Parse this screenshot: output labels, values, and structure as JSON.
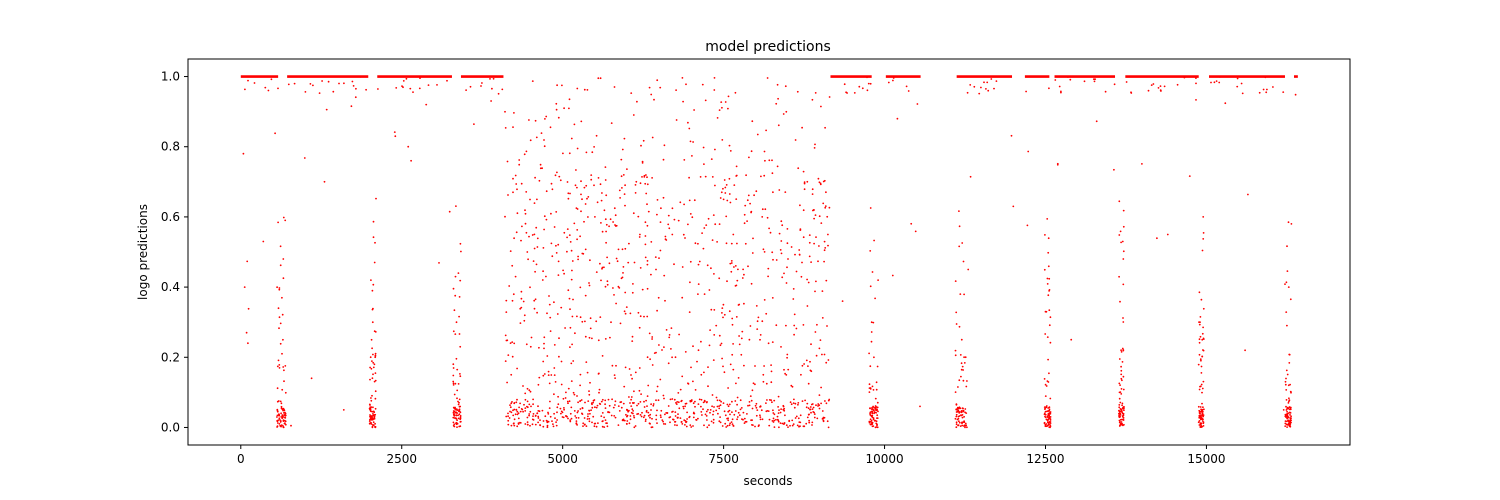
{
  "chart_data": {
    "type": "scatter",
    "title": "model predictions",
    "xlabel": "seconds",
    "ylabel": "logo predictions",
    "xlim": [
      -820,
      17230
    ],
    "ylim": [
      -0.05,
      1.05
    ],
    "xticks": [
      0,
      2500,
      5000,
      7500,
      10000,
      12500,
      15000
    ],
    "xtick_labels": [
      "0",
      "2500",
      "5000",
      "7500",
      "10000",
      "12500",
      "15000"
    ],
    "yticks": [
      0.0,
      0.2,
      0.4,
      0.6,
      0.8,
      1.0
    ],
    "ytick_labels": [
      "0.0",
      "0.2",
      "0.4",
      "0.6",
      "0.8",
      "1.0"
    ],
    "grid": false,
    "legend": "none",
    "series": [
      {
        "color": "#ff0000",
        "marker": "point",
        "segments_at_1": [
          [
            0,
            580
          ],
          [
            720,
            1980
          ],
          [
            2120,
            3280
          ],
          [
            3420,
            4080
          ],
          [
            9160,
            9800
          ],
          [
            10020,
            10560
          ],
          [
            11120,
            11980
          ],
          [
            12180,
            12560
          ],
          [
            12640,
            13580
          ],
          [
            13740,
            14880
          ],
          [
            15040,
            16220
          ],
          [
            16360,
            16420
          ]
        ],
        "dense_bands_near_0": [
          [
            560,
            700
          ],
          [
            2000,
            2100
          ],
          [
            3300,
            3420
          ],
          [
            9760,
            9900
          ],
          [
            11100,
            11280
          ],
          [
            12480,
            12580
          ],
          [
            13640,
            13720
          ],
          [
            14880,
            14960
          ],
          [
            16220,
            16320
          ]
        ],
        "scattered_region": [
          4100,
          9150
        ],
        "sample_points": [
          [
            40,
            0.78
          ],
          [
            60,
            0.4
          ],
          [
            90,
            0.27
          ],
          [
            110,
            0.24
          ],
          [
            350,
            0.53
          ],
          [
            600,
            0.01
          ],
          [
            640,
            0.21
          ],
          [
            660,
            0.48
          ],
          [
            690,
            0.59
          ],
          [
            780,
            0.005
          ],
          [
            1100,
            0.14
          ],
          [
            1300,
            0.7
          ],
          [
            1600,
            0.05
          ],
          [
            2050,
            0.3
          ],
          [
            2080,
            0.47
          ],
          [
            2400,
            0.83
          ],
          [
            2600,
            0.8
          ],
          [
            3350,
            0.3
          ],
          [
            3380,
            0.44
          ],
          [
            3400,
            0.08
          ],
          [
            4200,
            0.15
          ],
          [
            4450,
            0.5
          ],
          [
            4600,
            0.65
          ],
          [
            4800,
            0.35
          ],
          [
            5050,
            0.1
          ],
          [
            5200,
            0.69
          ],
          [
            5500,
            0.6
          ],
          [
            5750,
            0.3
          ],
          [
            6000,
            0.05
          ],
          [
            6200,
            0.55
          ],
          [
            6450,
            0.45
          ],
          [
            6700,
            0.2
          ],
          [
            6900,
            0.54
          ],
          [
            7100,
            0.38
          ],
          [
            7300,
            0.05
          ],
          [
            7500,
            0.65
          ],
          [
            7650,
            0.55
          ],
          [
            7900,
            0.25
          ],
          [
            8100,
            0.6
          ],
          [
            8350,
            0.02
          ],
          [
            8500,
            0.48
          ],
          [
            8700,
            0.15
          ],
          [
            8900,
            0.62
          ],
          [
            9050,
            0.02
          ],
          [
            9120,
            0.55
          ],
          [
            9800,
            0.3
          ],
          [
            9900,
            0.42
          ],
          [
            10200,
            0.88
          ],
          [
            10550,
            0.06
          ],
          [
            11200,
            0.25
          ],
          [
            11300,
            0.45
          ],
          [
            12000,
            0.63
          ],
          [
            12500,
            0.33
          ],
          [
            12900,
            0.25
          ],
          [
            13650,
            0.1
          ],
          [
            13700,
            0.53
          ],
          [
            14400,
            0.55
          ],
          [
            14900,
            0.3
          ],
          [
            14950,
            0.6
          ],
          [
            15600,
            0.22
          ],
          [
            16200,
            0.05
          ],
          [
            16280,
            0.4
          ],
          [
            16320,
            0.58
          ]
        ]
      }
    ]
  }
}
